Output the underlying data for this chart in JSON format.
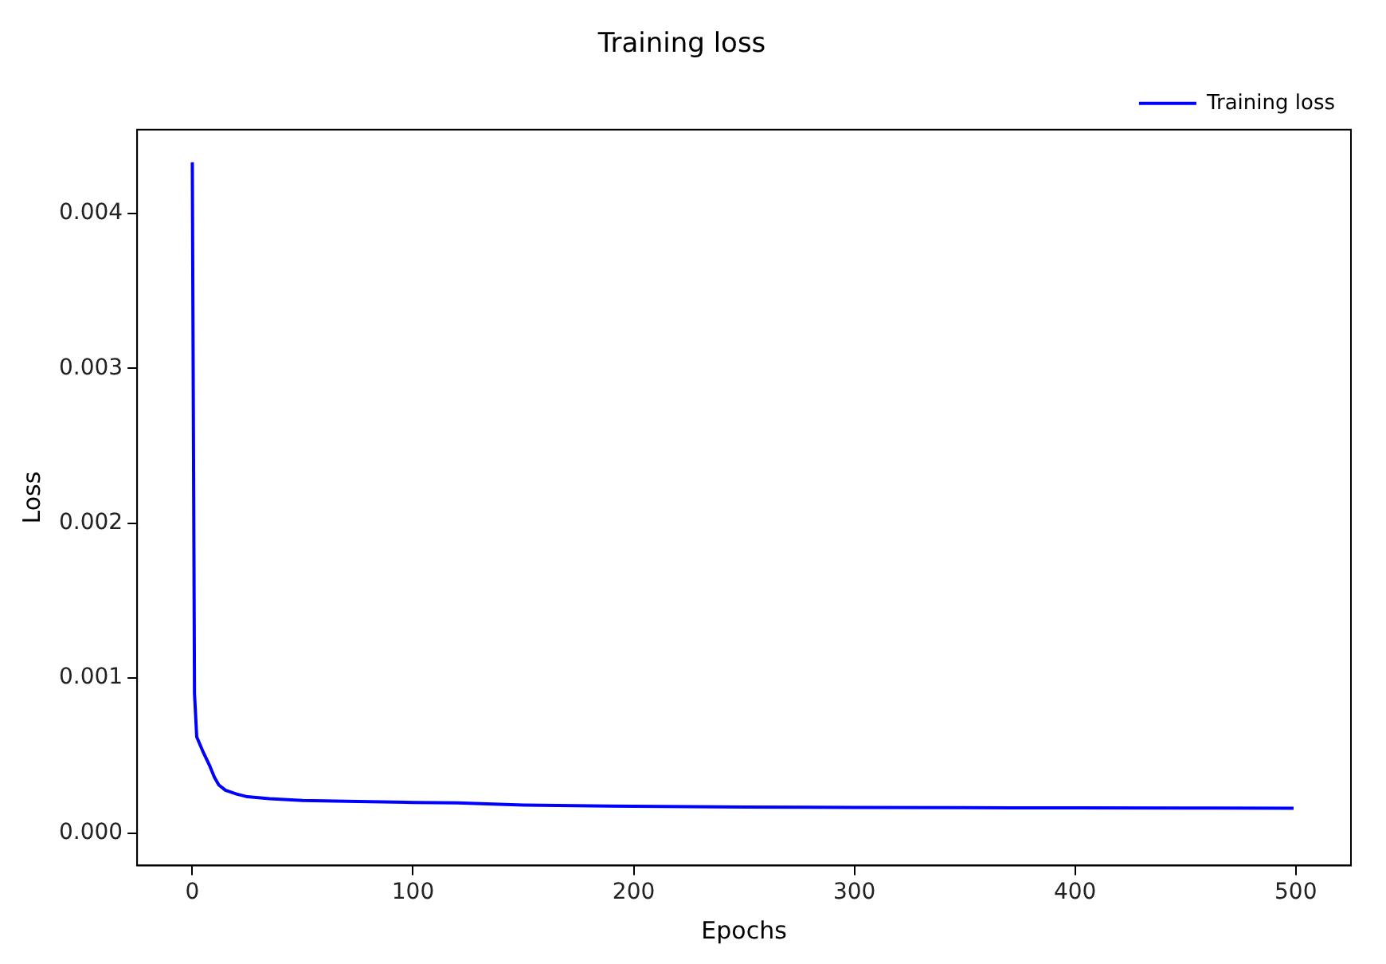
{
  "chart_data": {
    "type": "line",
    "title": "Training loss",
    "xlabel": "Epochs",
    "ylabel": "Loss",
    "series": [
      {
        "name": "Training loss",
        "color": "#0000ff",
        "x": [
          0,
          1,
          2,
          5,
          8,
          10,
          12,
          15,
          20,
          25,
          35,
          50,
          75,
          100,
          120,
          150,
          200,
          250,
          300,
          350,
          400,
          450,
          499
        ],
        "values": [
          0.00433,
          0.0009,
          0.00062,
          0.00052,
          0.00043,
          0.00036,
          0.00031,
          0.000276,
          0.000252,
          0.000234,
          0.000222,
          0.00021,
          0.000203,
          0.000197,
          0.000194,
          0.00018,
          0.000172,
          0.000168,
          0.000165,
          0.000163,
          0.000162,
          0.000161,
          0.00016
        ]
      }
    ],
    "xlim": [
      -25,
      525
    ],
    "xticks": [
      0,
      100,
      200,
      300,
      400,
      500
    ],
    "ylim": [
      -0.00021,
      0.00454
    ],
    "yticks": [
      {
        "value": 0,
        "label": "0.000"
      },
      {
        "value": 0.001,
        "label": "0.001"
      },
      {
        "value": 0.002,
        "label": "0.002"
      },
      {
        "value": 0.003,
        "label": "0.003"
      },
      {
        "value": 0.004,
        "label": "0.004"
      }
    ],
    "grid": false,
    "legend": "top right",
    "line_style": "solid",
    "marker": "none"
  }
}
